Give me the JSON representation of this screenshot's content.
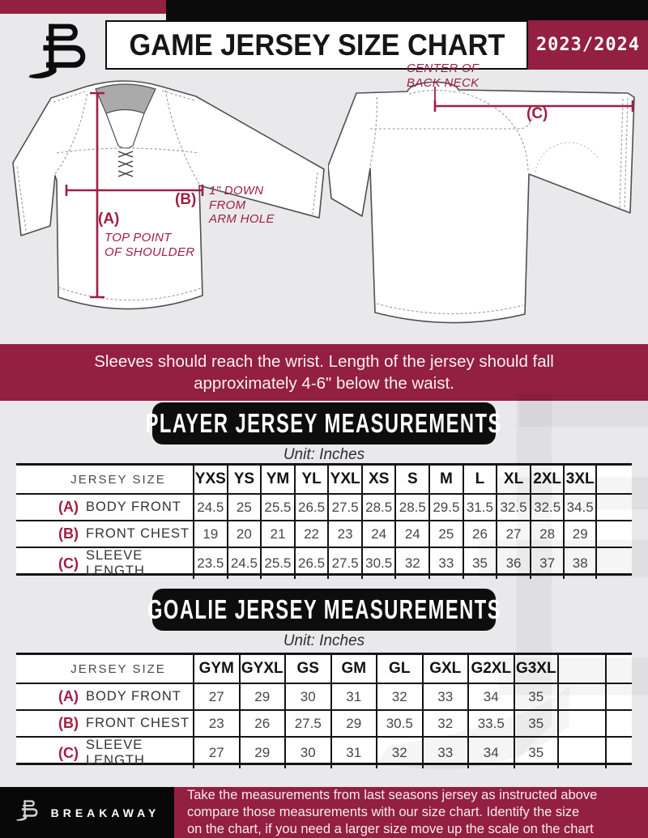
{
  "colors": {
    "maroon": "#931F41",
    "annotation": "#A11E42",
    "black": "#0B0B0B",
    "background": "#E9E9EB"
  },
  "header": {
    "title": "GAME JERSEY SIZE CHART",
    "season": "2023/2024"
  },
  "diagram": {
    "front": {
      "key_a": "(A)",
      "note_a": [
        "TOP POINT",
        "OF SHOULDER"
      ],
      "key_b": "(B)",
      "note_b": [
        "1\" DOWN",
        "FROM",
        "ARM HOLE"
      ]
    },
    "back": {
      "key_c": "(C)",
      "note_c": [
        "CENTER OF",
        "BACK NECK"
      ]
    }
  },
  "fit_note": {
    "line1": "Sleeves should reach the wrist. Length of the jersey should fall",
    "line2": "approximately 4-6\" below the waist."
  },
  "player_section": {
    "title": "PLAYER JERSEY MEASUREMENTS",
    "unit": "Unit: Inches",
    "table": {
      "header_label": "JERSEY SIZE",
      "sizes": [
        "YXS",
        "YS",
        "YM",
        "YL",
        "YXL",
        "XS",
        "S",
        "M",
        "L",
        "XL",
        "2XL",
        "3XL"
      ],
      "rows": [
        {
          "key": "(A)",
          "label": "BODY FRONT",
          "values": [
            "24.5",
            "25",
            "25.5",
            "26.5",
            "27.5",
            "28.5",
            "28.5",
            "29.5",
            "31.5",
            "32.5",
            "32.5",
            "34.5"
          ]
        },
        {
          "key": "(B)",
          "label": "FRONT CHEST",
          "values": [
            "19",
            "20",
            "21",
            "22",
            "23",
            "24",
            "24",
            "25",
            "26",
            "27",
            "28",
            "29"
          ]
        },
        {
          "key": "(C)",
          "label": "SLEEVE LENGTH",
          "values": [
            "23.5",
            "24.5",
            "25.5",
            "26.5",
            "27.5",
            "30.5",
            "32",
            "33",
            "35",
            "36",
            "37",
            "38"
          ]
        }
      ]
    }
  },
  "goalie_section": {
    "title": "GOALIE JERSEY MEASUREMENTS",
    "unit": "Unit: Inches",
    "table": {
      "header_label": "JERSEY SIZE",
      "sizes": [
        "GYM",
        "GYXL",
        "GS",
        "GM",
        "GL",
        "GXL",
        "G2XL",
        "G3XL"
      ],
      "rows": [
        {
          "key": "(A)",
          "label": "BODY FRONT",
          "values": [
            "27",
            "29",
            "30",
            "31",
            "32",
            "33",
            "34",
            "35"
          ]
        },
        {
          "key": "(B)",
          "label": "FRONT CHEST",
          "values": [
            "23",
            "26",
            "27.5",
            "29",
            "30.5",
            "32",
            "33.5",
            "35"
          ]
        },
        {
          "key": "(C)",
          "label": "SLEEVE LENGTH",
          "values": [
            "27",
            "29",
            "30",
            "31",
            "32",
            "33",
            "34",
            "35"
          ]
        }
      ]
    }
  },
  "footer": {
    "brand": "BREAKAWAY",
    "note_lines": [
      "Take the measurements from last seasons jersey as instructed above",
      "compare those measurements  with our size chart. Identify the size",
      "on the chart, if you need a larger size move up the scale on the chart"
    ]
  }
}
